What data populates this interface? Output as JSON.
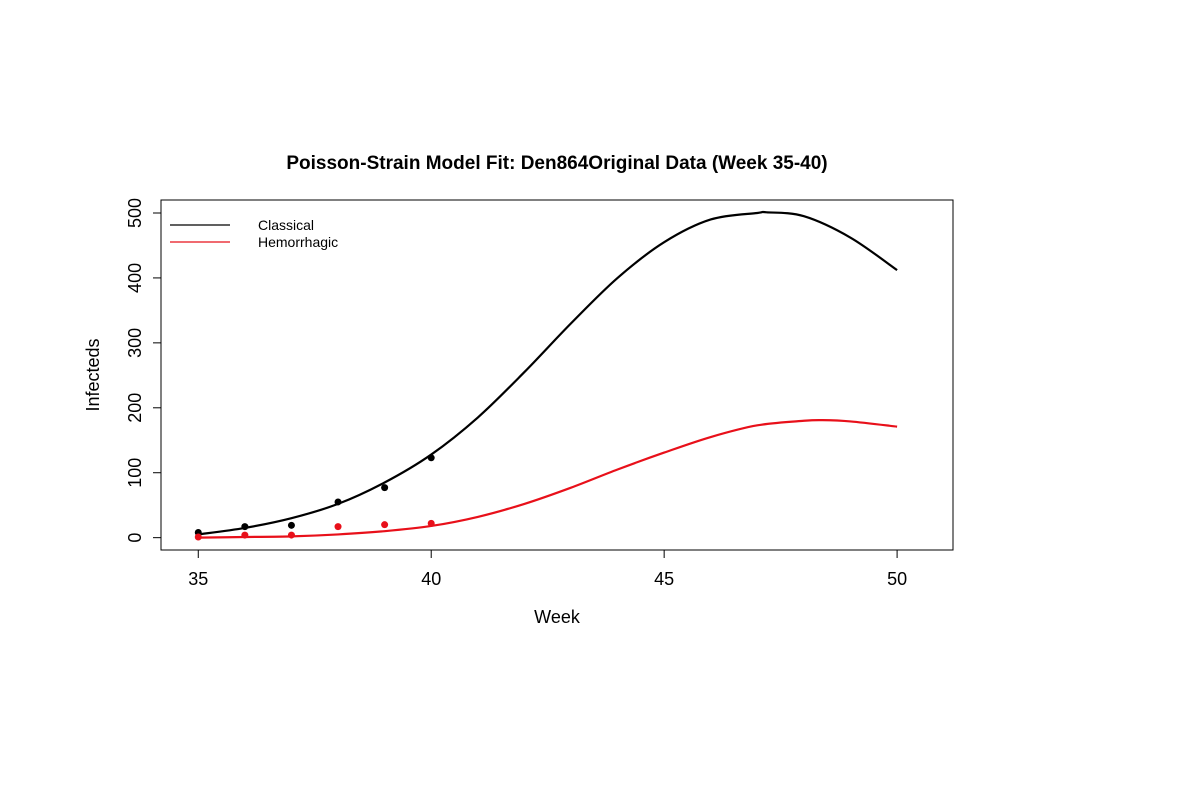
{
  "chart_data": {
    "type": "line",
    "title": "Poisson-Strain Model Fit: Den864Original Data (Week 35-40)",
    "xlabel": "Week",
    "ylabel": "Infecteds",
    "xlim": [
      34.2,
      51.2
    ],
    "ylim": [
      -19,
      520
    ],
    "x_ticks": [
      35,
      40,
      45,
      50
    ],
    "y_ticks": [
      0,
      100,
      200,
      300,
      400,
      500
    ],
    "legend_position": "top-left",
    "grid": false,
    "series": [
      {
        "name": "Classical",
        "color": "#000000",
        "curve": {
          "x": [
            35,
            36,
            37,
            38,
            39,
            40,
            41,
            42,
            43,
            44,
            45,
            46,
            47,
            47.2,
            48,
            49,
            50
          ],
          "y": [
            5,
            15,
            30,
            52,
            85,
            128,
            185,
            255,
            330,
            400,
            455,
            490,
            500,
            501,
            495,
            462,
            412
          ]
        },
        "points": {
          "x": [
            35,
            36,
            37,
            38,
            39,
            40
          ],
          "y": [
            8,
            17,
            19,
            55,
            77,
            123
          ]
        }
      },
      {
        "name": "Hemorrhagic",
        "color": "#e8101a",
        "curve": {
          "x": [
            35,
            36,
            37,
            38,
            39,
            40,
            41,
            42,
            43,
            44,
            45,
            46,
            47,
            48,
            48.4,
            49,
            50
          ],
          "y": [
            0,
            1,
            2,
            5,
            10,
            18,
            32,
            52,
            77,
            105,
            131,
            155,
            173,
            180,
            181,
            179,
            171
          ]
        },
        "points": {
          "x": [
            35,
            36,
            37,
            38,
            39,
            40
          ],
          "y": [
            1,
            4,
            4,
            17,
            20,
            22
          ]
        }
      }
    ]
  }
}
